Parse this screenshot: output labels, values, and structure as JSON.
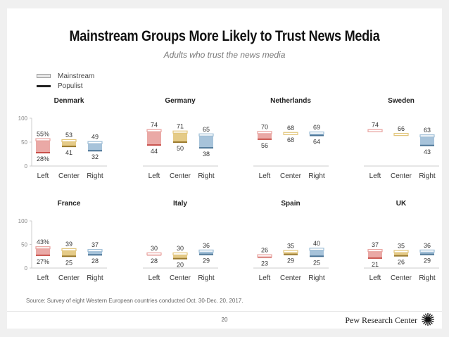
{
  "title": "Mainstream Groups More Likely to Trust News Media",
  "subtitle": "Adults who trust the news media",
  "legend": {
    "mainstream": "Mainstream",
    "populist": "Populist"
  },
  "source": "Source: Survey of eight Western European countries conducted Oct. 30-Dec. 20, 2017.",
  "page_number": "20",
  "brand": "Pew Research Center",
  "colors": {
    "left": "#e8a09c",
    "left_dark": "#c8504a",
    "center": "#e2c57a",
    "center_dark": "#9a7a2e",
    "right": "#9dbdd6",
    "right_dark": "#4d7697"
  },
  "chart_data": {
    "type": "range-bar",
    "title": "Mainstream Groups More Likely to Trust News Media",
    "subtitle": "Adults who trust the news media",
    "ylim": [
      0,
      100
    ],
    "yticks": [
      0,
      50,
      100
    ],
    "categories": [
      "Left",
      "Center",
      "Right"
    ],
    "legend": [
      "Mainstream",
      "Populist"
    ],
    "panels": [
      {
        "country": "Denmark",
        "mainstream": [
          55,
          53,
          49
        ],
        "populist": [
          28,
          41,
          32
        ],
        "labels_top": [
          "55%",
          "53",
          "49"
        ],
        "labels_bottom": [
          "28%",
          "41",
          "32"
        ]
      },
      {
        "country": "Germany",
        "mainstream": [
          74,
          71,
          65
        ],
        "populist": [
          44,
          50,
          38
        ],
        "labels_top": [
          "74",
          "71",
          "65"
        ],
        "labels_bottom": [
          "44",
          "50",
          "38"
        ]
      },
      {
        "country": "Netherlands",
        "mainstream": [
          70,
          68,
          69
        ],
        "populist": [
          56,
          68,
          64
        ],
        "labels_top": [
          "70",
          "68",
          "69"
        ],
        "labels_bottom": [
          "56",
          "68",
          "64"
        ]
      },
      {
        "country": "Sweden",
        "mainstream": [
          74,
          66,
          63
        ],
        "populist": [
          null,
          null,
          43
        ],
        "labels_top": [
          "74",
          "66",
          "63"
        ],
        "labels_bottom": [
          "",
          "",
          "43"
        ]
      },
      {
        "country": "France",
        "mainstream": [
          43,
          39,
          37
        ],
        "populist": [
          27,
          25,
          28
        ],
        "labels_top": [
          "43%",
          "39",
          "37"
        ],
        "labels_bottom": [
          "27%",
          "25",
          "28"
        ]
      },
      {
        "country": "Italy",
        "mainstream": [
          30,
          30,
          36
        ],
        "populist": [
          28,
          20,
          29
        ],
        "labels_top": [
          "30",
          "30",
          "36"
        ],
        "labels_bottom": [
          "28",
          "20",
          "29"
        ]
      },
      {
        "country": "Spain",
        "mainstream": [
          26,
          35,
          40
        ],
        "populist": [
          23,
          29,
          25
        ],
        "labels_top": [
          "26",
          "35",
          "40"
        ],
        "labels_bottom": [
          "23",
          "29",
          "25"
        ]
      },
      {
        "country": "UK",
        "mainstream": [
          37,
          35,
          36
        ],
        "populist": [
          21,
          26,
          29
        ],
        "labels_top": [
          "37",
          "35",
          "36"
        ],
        "labels_bottom": [
          "21",
          "26",
          "29"
        ]
      }
    ]
  }
}
